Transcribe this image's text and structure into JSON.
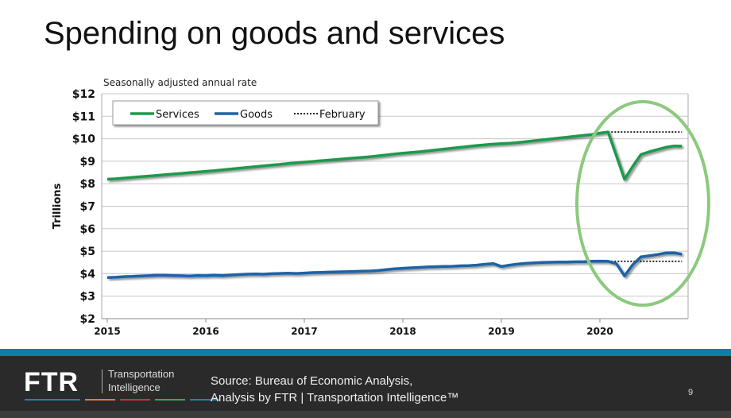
{
  "slide": {
    "title": "Spending on goods and services",
    "page_number": "9"
  },
  "footer": {
    "logo": "FTR",
    "logo_sub1": "Transportation",
    "logo_sub2": "Intelligence",
    "source_line1": "Source: Bureau of Economic Analysis,",
    "source_line2": "Analysis by FTR | Transportation Intelligence™",
    "stripe_colors": [
      "#1b86b5",
      "#e8793a",
      "#d0303a",
      "#3aa55a",
      "#1b86b5"
    ]
  },
  "chart_data": {
    "type": "line",
    "subtitle": "Seasonally adjusted annual rate",
    "ylabel": "Trillions",
    "ylim": [
      2,
      12
    ],
    "yticks": [
      "$2",
      "$3",
      "$4",
      "$5",
      "$6",
      "$7",
      "$8",
      "$9",
      "$10",
      "$11",
      "$12"
    ],
    "xticks": [
      "2015",
      "2016",
      "2017",
      "2018",
      "2019",
      "2020"
    ],
    "x_start": "2015-01",
    "frequency": "monthly",
    "grid": true,
    "legend": "top-left",
    "series": [
      {
        "name": "Services",
        "color": "#1b9a4b",
        "values": [
          8.2,
          8.22,
          8.25,
          8.28,
          8.31,
          8.34,
          8.37,
          8.4,
          8.43,
          8.46,
          8.49,
          8.52,
          8.55,
          8.58,
          8.62,
          8.65,
          8.69,
          8.72,
          8.76,
          8.79,
          8.83,
          8.86,
          8.9,
          8.93,
          8.96,
          8.99,
          9.02,
          9.05,
          9.08,
          9.11,
          9.14,
          9.17,
          9.2,
          9.24,
          9.28,
          9.32,
          9.36,
          9.39,
          9.42,
          9.46,
          9.5,
          9.54,
          9.58,
          9.62,
          9.66,
          9.7,
          9.73,
          9.76,
          9.78,
          9.8,
          9.83,
          9.87,
          9.91,
          9.95,
          9.99,
          10.03,
          10.07,
          10.11,
          10.15,
          10.19,
          10.25,
          10.3,
          9.25,
          8.2,
          8.77,
          9.3,
          9.42,
          9.52,
          9.62,
          9.68,
          9.67
        ]
      },
      {
        "name": "Goods",
        "color": "#1f63a6",
        "values": [
          3.83,
          3.84,
          3.87,
          3.88,
          3.9,
          3.91,
          3.93,
          3.93,
          3.92,
          3.91,
          3.9,
          3.92,
          3.91,
          3.93,
          3.92,
          3.94,
          3.96,
          3.98,
          3.99,
          3.98,
          4.0,
          4.01,
          4.02,
          4.01,
          4.03,
          4.05,
          4.06,
          4.07,
          4.08,
          4.09,
          4.1,
          4.11,
          4.12,
          4.14,
          4.18,
          4.22,
          4.24,
          4.26,
          4.28,
          4.3,
          4.31,
          4.32,
          4.33,
          4.35,
          4.36,
          4.38,
          4.42,
          4.45,
          4.32,
          4.38,
          4.43,
          4.46,
          4.48,
          4.5,
          4.51,
          4.52,
          4.52,
          4.53,
          4.53,
          4.55,
          4.56,
          4.55,
          4.45,
          3.9,
          4.4,
          4.75,
          4.8,
          4.85,
          4.92,
          4.93,
          4.87
        ]
      },
      {
        "name": "February",
        "color": "#222222",
        "style": "dotted",
        "reference_values": [
          10.3,
          4.55
        ],
        "from": "2020-02"
      }
    ],
    "annotation": {
      "shape": "ellipse",
      "color": "#8cc97e",
      "highlights": "2020"
    }
  }
}
